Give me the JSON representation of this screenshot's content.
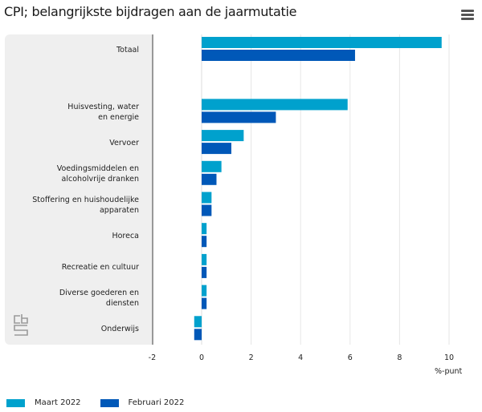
{
  "header": {
    "title": "CPI; belangrijkste bijdragen aan de jaarmutatie",
    "menu_icon": "hamburger-menu-icon"
  },
  "logo": "cbs-logo",
  "colors": {
    "maart": "#00a1cd",
    "februari": "#0058b8",
    "grid": "#e6e6e6",
    "panel": "#efefef"
  },
  "chart_data": {
    "type": "bar",
    "orientation": "horizontal",
    "title": "CPI; belangrijkste bijdragen aan de jaarmutatie",
    "categories": [
      "Totaal",
      "",
      "Huisvesting, water\nen energie",
      "Vervoer",
      "Voedingsmiddelen en\nalcoholvrije dranken",
      "Stoffering en huishoudelijke\napparaten",
      "Horeca",
      "Recreatie en cultuur",
      "Diverse goederen en\ndiensten",
      "Onderwijs"
    ],
    "series": [
      {
        "name": "Maart 2022",
        "color": "#00a1cd",
        "values": [
          9.7,
          null,
          5.9,
          1.7,
          0.8,
          0.4,
          0.2,
          0.2,
          0.2,
          -0.3
        ]
      },
      {
        "name": "Februari 2022",
        "color": "#0058b8",
        "values": [
          6.2,
          null,
          3.0,
          1.2,
          0.6,
          0.4,
          0.2,
          0.2,
          0.2,
          -0.3
        ]
      }
    ],
    "xlabel": "%-punt",
    "ylabel": "",
    "xlim": [
      -2,
      10
    ],
    "xticks": [
      -2,
      0,
      2,
      4,
      6,
      8,
      10
    ],
    "grid": true,
    "legend": "bottom-left"
  }
}
